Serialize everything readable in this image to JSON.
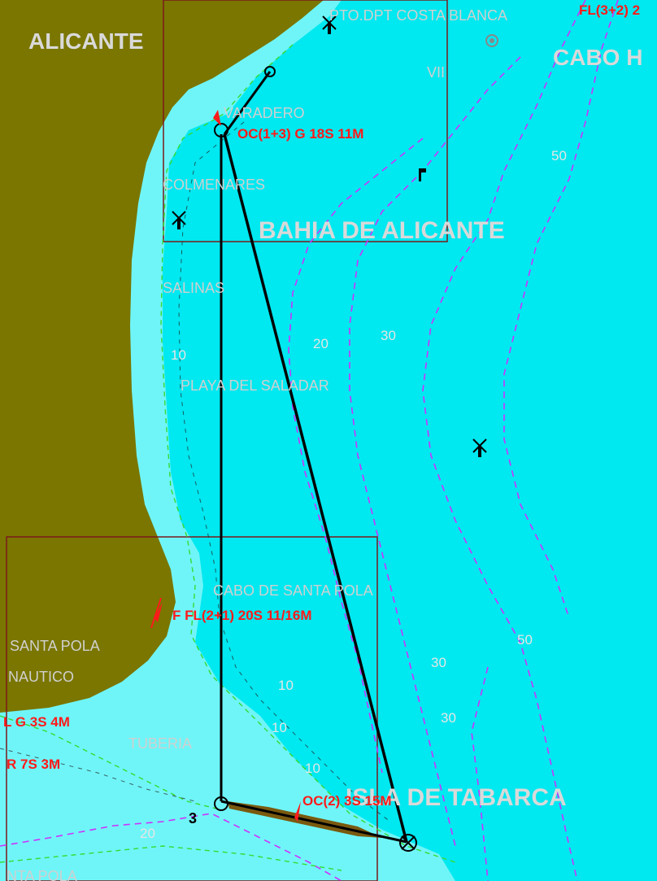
{
  "map": {
    "colors": {
      "sea": "#00e8f0",
      "shallow": "#6ff5f8",
      "land": "#7a7600",
      "route": "#000000",
      "depth_contour": "#cc33ff",
      "shallow_contour": "#33dd33",
      "light_text": "#ff1a1a",
      "place_text": "#d9d9d9",
      "chart_frame": "#7a1a1a"
    },
    "place_names": {
      "alicante": "ALICANTE",
      "puerto": "PTO.DPT COSTA BLANCA",
      "cabo": "CABO H",
      "varadero": "VARADERO",
      "colmenares": "COLMENARES",
      "bahia": "BAHIA DE ALICANTE",
      "salinas": "SALINAS",
      "playa": "PLAYA DEL SALADAR",
      "cabo_santa_pola": "CABO DE SANTA POLA",
      "santa_pola": "SANTA POLA",
      "nautico": "NAUTICO",
      "tuberia": "TUBERIA",
      "tabarca": "ISLA DE TABARCA",
      "santa_pola_bottom": "NTA POLA",
      "vii": "VII"
    },
    "light_labels": {
      "top_right": "FL(3+2) 2",
      "alicante_light": "OC(1+3) G 18S 11M",
      "santa_pola_light": "F FL(2+1) 20S 11/16M",
      "green_light": "L G 3S 4M",
      "red_light": "R 7S 3M",
      "tabarca_light": "OC(2) 3S 15M"
    },
    "depths": {
      "d50_top": "50",
      "d20": "20",
      "d30": "30",
      "d10_left": "10",
      "d50_right": "50",
      "d30_a": "30",
      "d30_b": "30",
      "d10_a": "10",
      "d10_b": "10",
      "d10_c": "10",
      "d20_bottom": "20",
      "d3": "3"
    }
  }
}
